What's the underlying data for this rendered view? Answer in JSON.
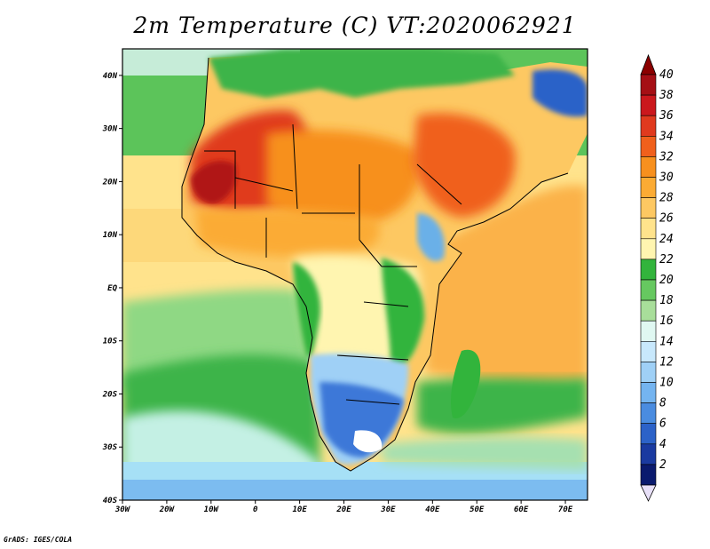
{
  "title": "2m Temperature (C) VT:2020062921",
  "footer": "GrADS: IGES/COLA",
  "map": {
    "lon_ticks": [
      {
        "value": -30,
        "label": "30W"
      },
      {
        "value": -20,
        "label": "20W"
      },
      {
        "value": -10,
        "label": "10W"
      },
      {
        "value": 0,
        "label": "0"
      },
      {
        "value": 10,
        "label": "10E"
      },
      {
        "value": 20,
        "label": "20E"
      },
      {
        "value": 30,
        "label": "30E"
      },
      {
        "value": 40,
        "label": "40E"
      },
      {
        "value": 50,
        "label": "50E"
      },
      {
        "value": 60,
        "label": "60E"
      },
      {
        "value": 70,
        "label": "70E"
      }
    ],
    "lat_ticks": [
      {
        "value": 40,
        "label": "40N"
      },
      {
        "value": 30,
        "label": "30N"
      },
      {
        "value": 20,
        "label": "20N"
      },
      {
        "value": 10,
        "label": "10N"
      },
      {
        "value": 0,
        "label": "EQ"
      },
      {
        "value": -10,
        "label": "10S"
      },
      {
        "value": -20,
        "label": "20S"
      },
      {
        "value": -30,
        "label": "30S"
      },
      {
        "value": -40,
        "label": "40S"
      }
    ],
    "lon_range": [
      -30,
      75
    ],
    "lat_range": [
      -40,
      45
    ]
  },
  "colorbar": {
    "labels": [
      "40",
      "38",
      "36",
      "34",
      "32",
      "30",
      "28",
      "26",
      "24",
      "22",
      "20",
      "18",
      "16",
      "14",
      "12",
      "10",
      "8",
      "6",
      "4",
      "2"
    ],
    "colors_top_to_bottom": [
      "#a50f15",
      "#cb181d",
      "#e03a1e",
      "#f0601c",
      "#f7901e",
      "#fbab34",
      "#fdc862",
      "#ffe38c",
      "#fff5b0",
      "#32b43c",
      "#66c860",
      "#a8de9a",
      "#e0f8f2",
      "#c8e8fc",
      "#9fd0f6",
      "#74b4f0",
      "#4a8ce0",
      "#2c62c8",
      "#1a3aa0",
      "#0a1a6e"
    ],
    "top_arrow_color": "#8b0000",
    "bottom_arrow_color": "#e8e0f8"
  },
  "palette": {
    "ocean_north": "#7fd07a",
    "ocean_mid": "#ffe38c",
    "ocean_south": "#d8f4f8",
    "sahara_hot": "#e03a1e",
    "sahara_warm": "#f7901e",
    "sahel": "#fbab34",
    "congo": "#32b43c",
    "south_africa": "#4a8ce0",
    "border": "#000000"
  }
}
